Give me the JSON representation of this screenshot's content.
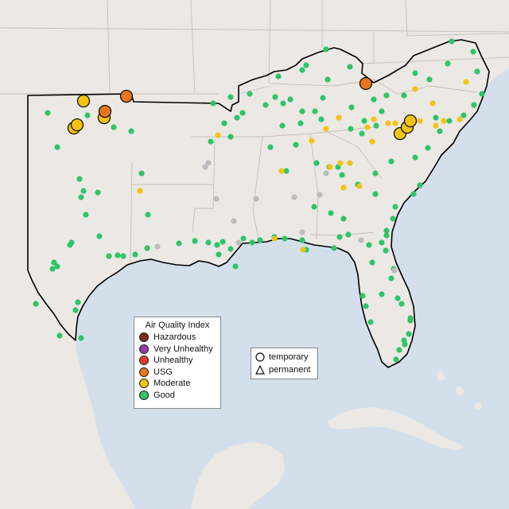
{
  "colors": {
    "ocean": "#d3e0ec",
    "land": "#ece8e4",
    "border": "#c6bfb8",
    "outline": "#000000",
    "hazardous": "#7e2a1f",
    "very_unhealthy": "#8f3fa7",
    "unhealthy": "#e43d2d",
    "usg": "#e7761d",
    "moderate": "#f2c315",
    "good": "#2fc46a",
    "no_data": "#bdbdbd"
  },
  "legend": {
    "title": "Air Quality Index",
    "items": [
      {
        "label": "Hazardous",
        "color": "#7e2a1f"
      },
      {
        "label": "Very Unhealthy",
        "color": "#8f3fa7"
      },
      {
        "label": "Unhealthy",
        "color": "#e43d2d"
      },
      {
        "label": "USG",
        "color": "#e7761d"
      },
      {
        "label": "Moderate",
        "color": "#f2c315"
      },
      {
        "label": "Good",
        "color": "#2fc46a"
      }
    ]
  },
  "shape_legend": {
    "temporary": "temporary",
    "permanent": "permanent"
  }
}
